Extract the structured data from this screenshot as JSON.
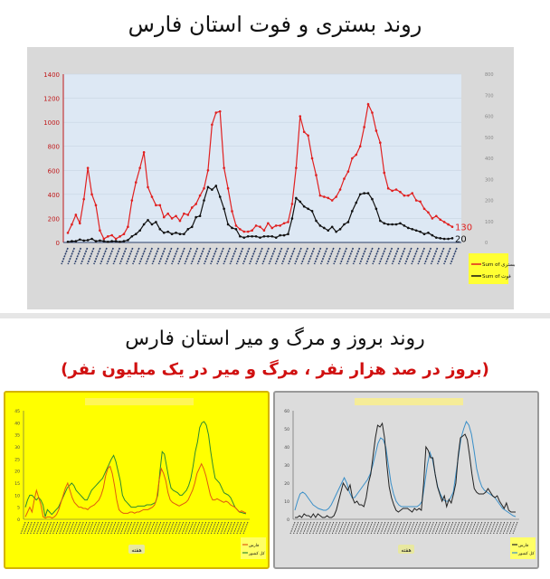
{
  "top_title": "روند بستری و فوت استان فارس",
  "bottom_title": "روند بروز و مرگ و میر استان فارس",
  "bottom_subtitle": "(بروز در صد هزار نفر ، مرگ و میر در یک میلیون نفر)",
  "chart_data": [
    {
      "type": "line",
      "ylim": [
        0,
        1400
      ],
      "yticks": [
        0,
        200,
        400,
        600,
        800,
        1000,
        1200,
        1400
      ],
      "y2lim": [
        0,
        800
      ],
      "y2ticks": [
        0,
        100,
        200,
        300,
        400,
        500,
        600,
        700,
        800
      ],
      "grid": true,
      "legend": "right",
      "legend_title": "",
      "series": [
        {
          "name": "Sum of بستری",
          "axis": "left",
          "color": "#e02020",
          "end_label": "130",
          "values": [
            80,
            150,
            230,
            160,
            360,
            620,
            400,
            310,
            100,
            30,
            50,
            60,
            30,
            50,
            70,
            130,
            350,
            500,
            620,
            750,
            460,
            380,
            310,
            310,
            210,
            240,
            200,
            220,
            180,
            240,
            230,
            290,
            320,
            390,
            450,
            600,
            980,
            1080,
            1090,
            620,
            450,
            260,
            140,
            110,
            90,
            90,
            100,
            140,
            130,
            100,
            160,
            120,
            140,
            140,
            160,
            170,
            320,
            620,
            1050,
            920,
            890,
            700,
            560,
            390,
            380,
            370,
            350,
            380,
            440,
            530,
            590,
            700,
            730,
            800,
            960,
            1150,
            1080,
            930,
            830,
            580,
            450,
            430,
            440,
            420,
            390,
            390,
            410,
            350,
            340,
            280,
            250,
            200,
            220,
            190,
            170,
            150,
            130
          ]
        },
        {
          "name": "Sum of فوت",
          "axis": "right",
          "color": "#111111",
          "end_label": "20",
          "values": [
            3,
            6,
            6,
            14,
            9,
            11,
            17,
            6,
            9,
            6,
            3,
            6,
            6,
            3,
            6,
            11,
            29,
            40,
            57,
            86,
            106,
            86,
            97,
            63,
            46,
            51,
            40,
            46,
            40,
            40,
            63,
            74,
            120,
            126,
            200,
            263,
            251,
            269,
            217,
            160,
            86,
            69,
            63,
            29,
            23,
            29,
            29,
            29,
            23,
            29,
            29,
            29,
            23,
            34,
            34,
            40,
            114,
            211,
            194,
            171,
            160,
            149,
            103,
            80,
            69,
            57,
            74,
            51,
            63,
            86,
            97,
            149,
            189,
            229,
            234,
            234,
            206,
            160,
            103,
            91,
            86,
            86,
            86,
            91,
            80,
            69,
            63,
            57,
            51,
            40,
            46,
            34,
            23,
            20,
            17,
            17,
            20
          ]
        }
      ]
    },
    {
      "type": "line",
      "ylim": [
        0,
        45
      ],
      "yticks": [
        0,
        5,
        10,
        15,
        20,
        25,
        30,
        35,
        40,
        45
      ],
      "xlabel": "هفته",
      "legend": "bottom-right",
      "background": "#ffff00",
      "series": [
        {
          "name": "کل کشور",
          "color": "#2e8b2e",
          "values": [
            5,
            8,
            10,
            10,
            9,
            8,
            9,
            8,
            6,
            1,
            4,
            3,
            2,
            3,
            4,
            5,
            7,
            9,
            11,
            13,
            14,
            15,
            14,
            12,
            11,
            10,
            9,
            8,
            8,
            10,
            12,
            13,
            14,
            15,
            16,
            17,
            19,
            21,
            23,
            25,
            26.5,
            24,
            20,
            16,
            10,
            8,
            7,
            6,
            5,
            5,
            5,
            5.5,
            5.5,
            5.5,
            5.5,
            6,
            6,
            6,
            6.5,
            7,
            10,
            20,
            28,
            27,
            22,
            17,
            13,
            12,
            11.5,
            11,
            10,
            10,
            11,
            12,
            14,
            17,
            22,
            28,
            32,
            38,
            40,
            40.5,
            39,
            35,
            28,
            22,
            17,
            16,
            15,
            13,
            11,
            10.5,
            10,
            9,
            7,
            5,
            4,
            3,
            2.8,
            2.5,
            2.3
          ]
        },
        {
          "name": "فارس",
          "color": "#e05a10",
          "values": [
            1,
            3,
            5,
            3,
            8,
            12,
            9,
            6,
            1,
            0.5,
            1,
            1,
            0.5,
            1,
            2,
            4,
            7,
            10,
            13,
            15,
            12,
            9,
            7,
            6,
            5,
            5,
            4.5,
            4.5,
            4,
            5,
            5.5,
            6,
            7,
            8,
            10,
            13,
            18,
            21,
            22,
            19,
            14,
            8,
            4,
            3,
            2.5,
            2.5,
            2.5,
            3,
            3,
            2.5,
            3,
            3,
            3.5,
            4,
            4,
            4,
            4.5,
            5,
            6,
            9,
            16,
            21,
            19,
            16,
            11,
            8,
            7,
            6.5,
            6,
            5.5,
            6,
            6.5,
            7,
            8,
            10,
            12,
            15,
            19,
            21,
            23,
            21,
            18,
            14,
            10,
            8,
            8,
            8.5,
            8,
            7.5,
            7,
            7.5,
            7,
            6,
            5.5,
            5,
            4,
            3,
            3.5,
            3,
            2.6
          ]
        }
      ]
    },
    {
      "type": "line",
      "ylim": [
        0,
        60
      ],
      "yticks": [
        0,
        10,
        20,
        30,
        40,
        50,
        60
      ],
      "xlabel": "هفته",
      "legend": "bottom-right",
      "background": "#dcdcdc",
      "series": [
        {
          "name": "کل کشور",
          "color": "#3a8fc8",
          "values": [
            5,
            10,
            14,
            15,
            14,
            12,
            10,
            8,
            7,
            6,
            5.5,
            5,
            5,
            6,
            8,
            11,
            14,
            17,
            20,
            23,
            20,
            15,
            12,
            12,
            14,
            16,
            18,
            20,
            22,
            25,
            30,
            36,
            42,
            45,
            44,
            40,
            30,
            20,
            14,
            10,
            8,
            7,
            7,
            7,
            7,
            7,
            7,
            7,
            8,
            10,
            20,
            30,
            37,
            33,
            25,
            18,
            14,
            11,
            10,
            10,
            12,
            15,
            25,
            35,
            45,
            50,
            54,
            52,
            47,
            38,
            28,
            22,
            18,
            16,
            15,
            14,
            13,
            12,
            10,
            8,
            6,
            5,
            4,
            3,
            2,
            1.5
          ]
        },
        {
          "name": "فارس",
          "color": "#222222",
          "values": [
            1,
            1,
            2,
            1,
            3,
            2,
            2,
            1,
            3,
            1,
            3,
            2,
            1,
            1,
            2,
            1,
            1,
            2,
            5,
            10,
            15,
            20,
            18,
            16,
            19,
            12,
            9,
            10,
            8,
            8,
            7,
            12,
            20,
            25,
            35,
            45,
            52,
            51,
            53,
            45,
            30,
            18,
            12,
            8,
            5,
            4,
            5,
            6,
            6,
            6,
            5,
            4,
            6,
            5,
            6,
            5,
            20,
            40,
            38,
            34,
            34,
            25,
            18,
            14,
            10,
            13,
            7,
            11,
            9,
            14,
            20,
            35,
            45,
            46,
            47,
            44,
            35,
            25,
            17,
            15,
            14,
            14,
            14,
            15,
            17,
            15,
            13,
            12,
            13,
            10,
            8,
            6,
            9,
            5,
            4,
            4,
            4
          ]
        }
      ]
    }
  ]
}
